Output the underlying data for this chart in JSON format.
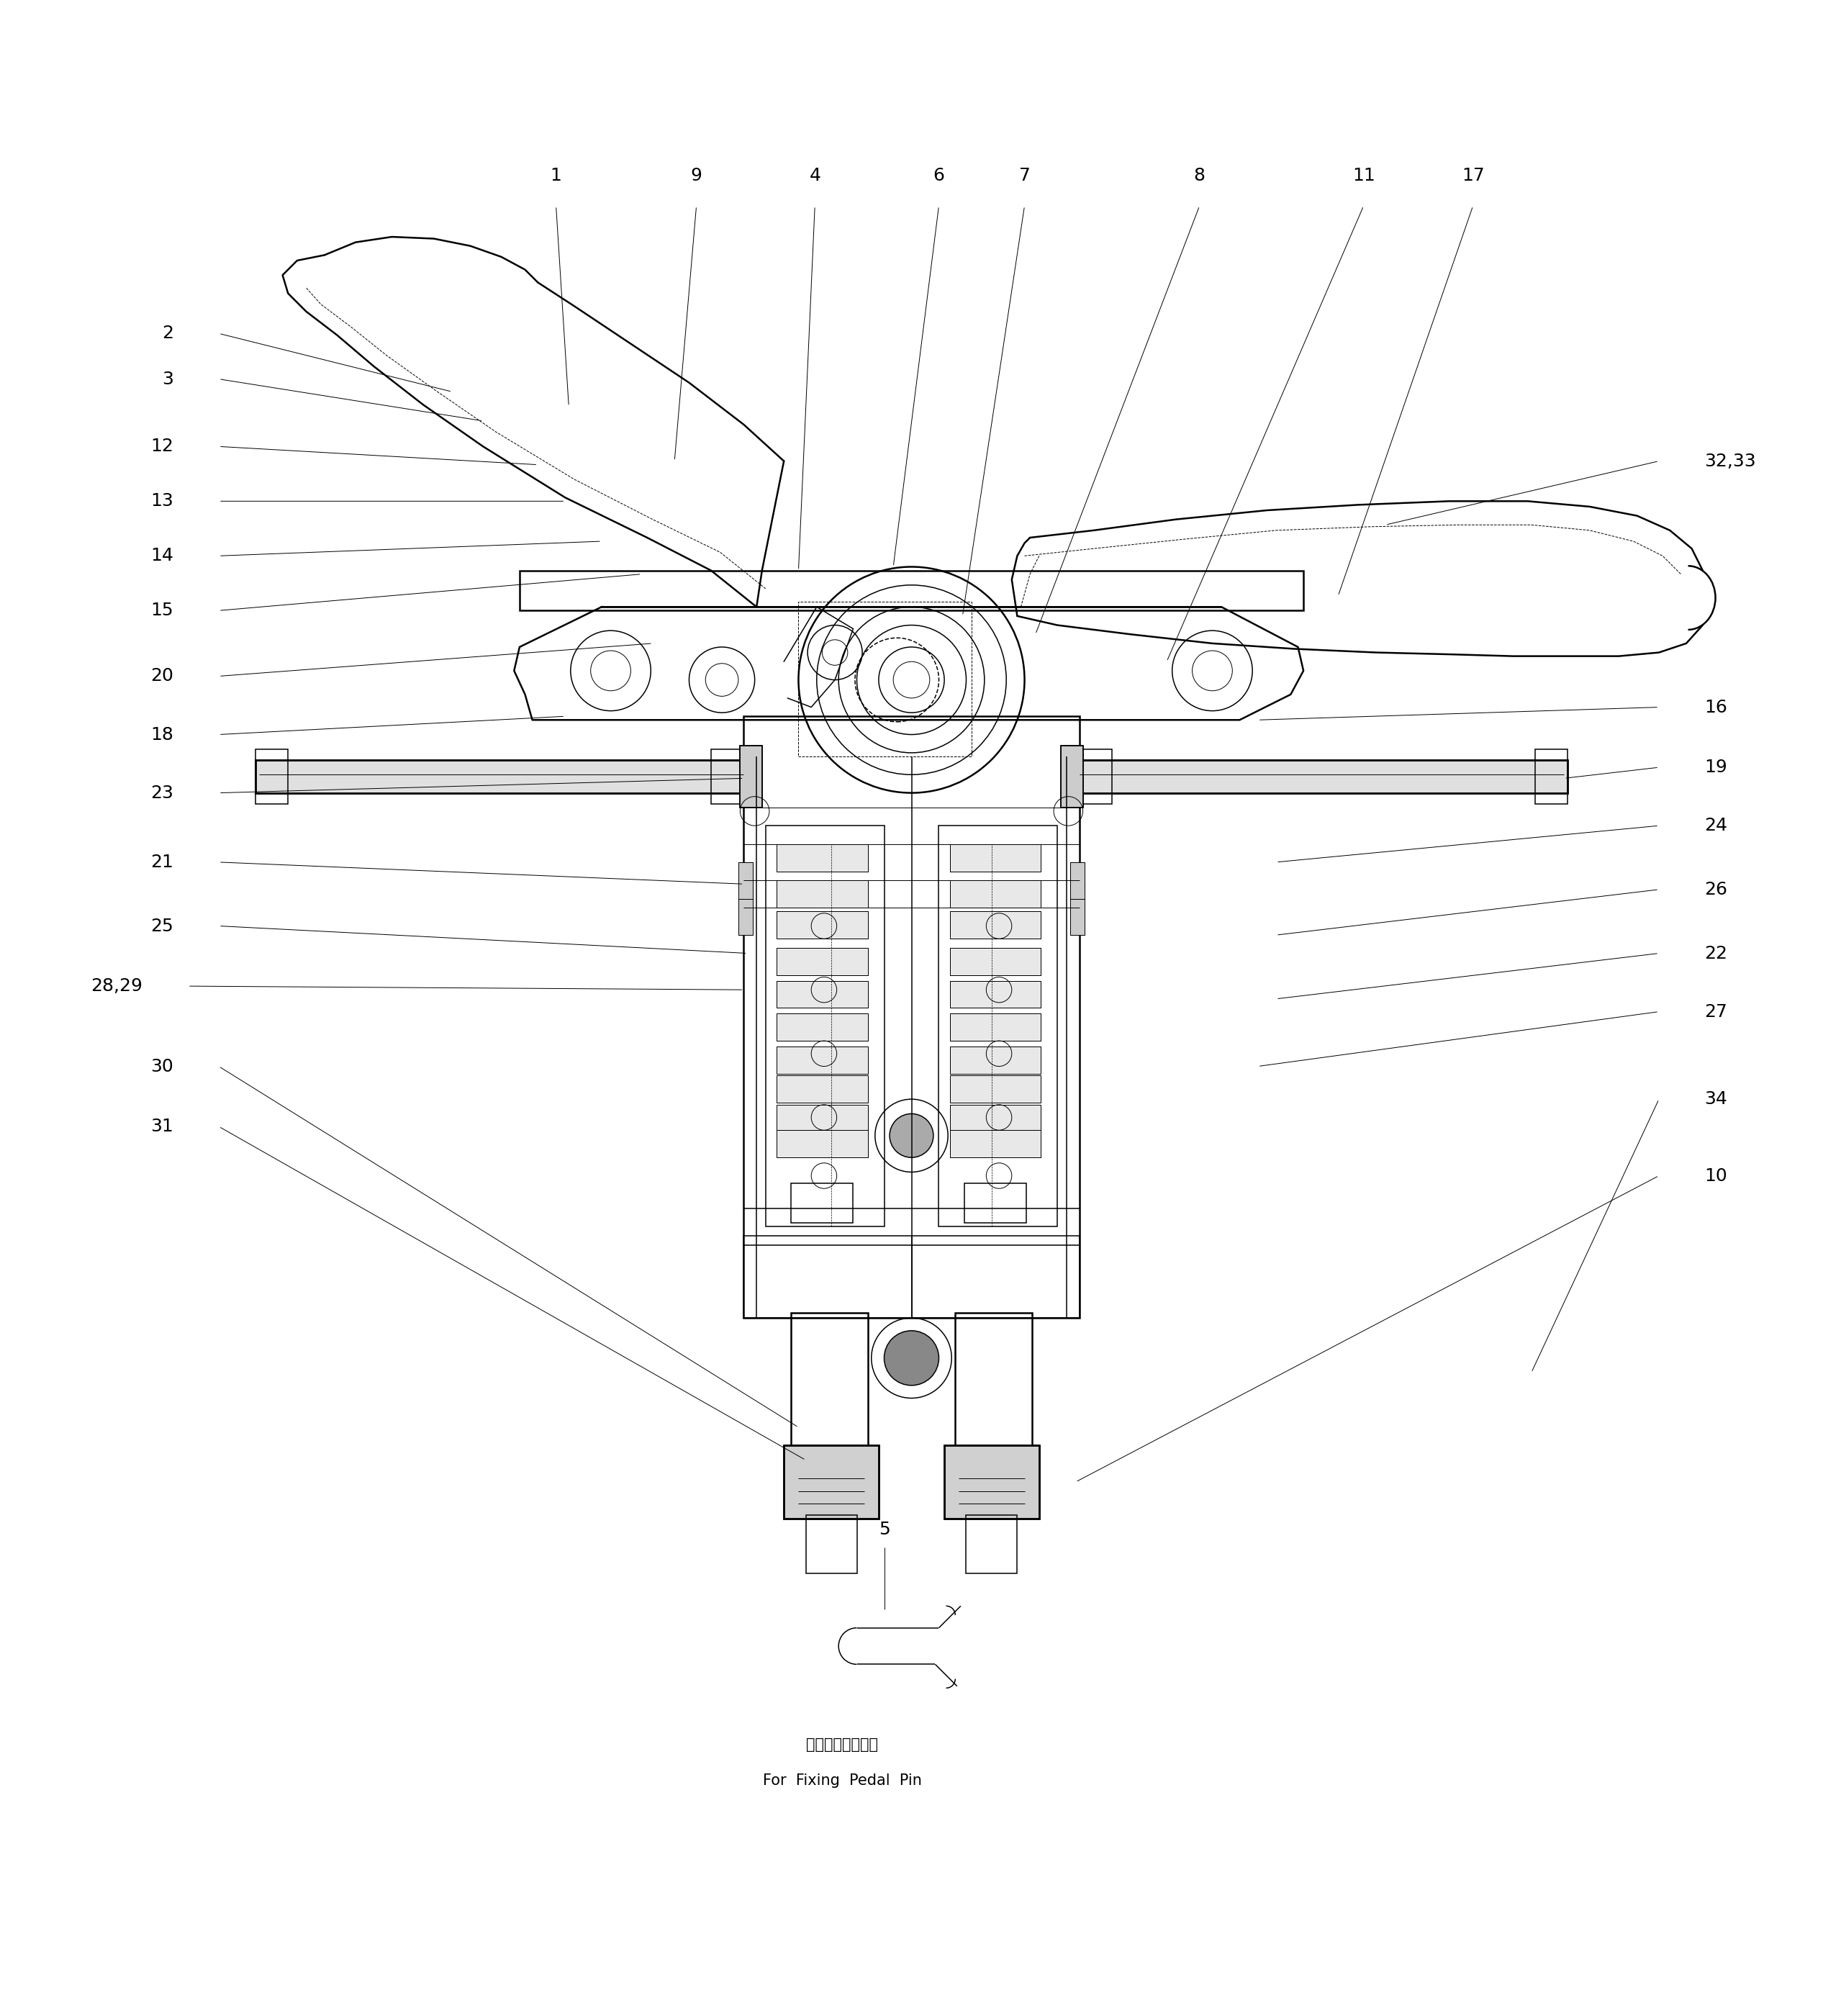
{
  "figure_width": 25.33,
  "figure_height": 28.01,
  "bg_color": "#ffffff",
  "line_color": "#000000",
  "label_color": "#000000",
  "label_fontsize": 18,
  "caption_jp": "ペダルピン固定用",
  "caption_en": "For  Fixing  Pedal  Pin"
}
